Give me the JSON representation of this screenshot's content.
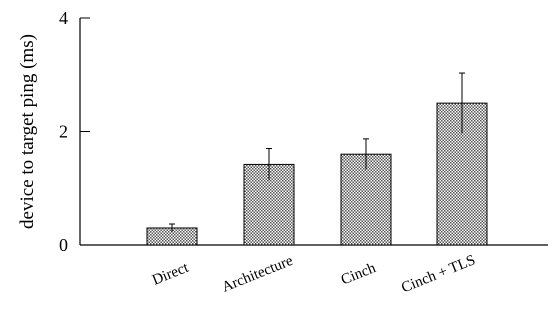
{
  "chart_data": {
    "type": "bar",
    "title": "",
    "xlabel": "",
    "ylabel": "device to target ping (ms)",
    "categories": [
      "Direct",
      "Architecture",
      "Cinch",
      "Cinch + TLS"
    ],
    "values": [
      0.3,
      1.42,
      1.6,
      2.5
    ],
    "error": [
      0.07,
      0.28,
      0.27,
      0.53
    ],
    "ylim": [
      0,
      4
    ],
    "yticks": [
      0,
      2,
      4
    ],
    "grid": false,
    "bar_pattern": "crosshatch",
    "colors": {
      "bar_fill": "#9a9a9a",
      "bar_stroke": "#000000",
      "axis": "#000000"
    }
  }
}
